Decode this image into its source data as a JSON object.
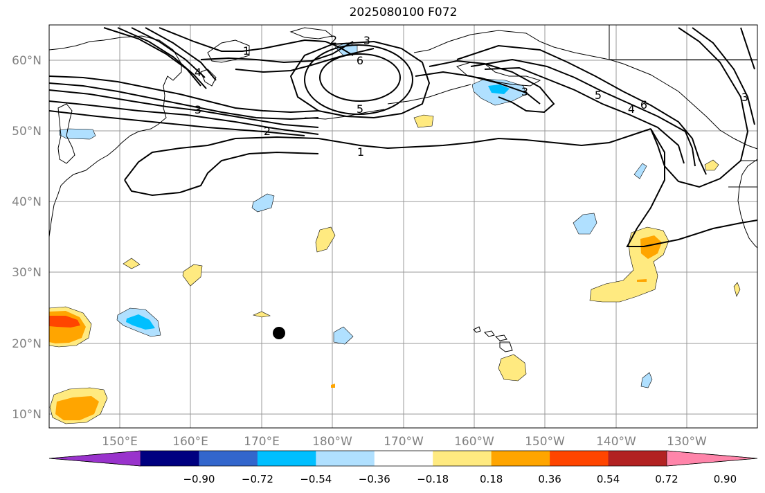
{
  "map": {
    "title": "2025080100 F072",
    "lat_labels": [
      "60°N",
      "50°N",
      "40°N",
      "30°N",
      "20°N",
      "10°N"
    ],
    "lon_labels": [
      "150°E",
      "160°E",
      "170°E",
      "180°W",
      "170°W",
      "160°W",
      "150°W",
      "140°W",
      "130°W"
    ],
    "contour_labels": [
      "1",
      "2",
      "3",
      "6",
      "5",
      "4",
      "3",
      "1",
      "2",
      "3",
      "6",
      "5",
      "4",
      "3"
    ],
    "colorbar": {
      "colors": [
        "#9933cc",
        "#000080",
        "#3366cc",
        "#00bfff",
        "#b0e0ff",
        "#ffffff",
        "#ffea80",
        "#ffa500",
        "#ff4500",
        "#b22222",
        "#ff85aa"
      ],
      "tick_labels": [
        "−0.90",
        "−0.72",
        "−0.54",
        "−0.36",
        "−0.18",
        "0.18",
        "0.36",
        "0.54",
        "0.72",
        "0.90"
      ]
    },
    "colors": {
      "contour": "#000000",
      "grid": "#999999",
      "coast": "#000000",
      "marker": "#000000"
    }
  }
}
